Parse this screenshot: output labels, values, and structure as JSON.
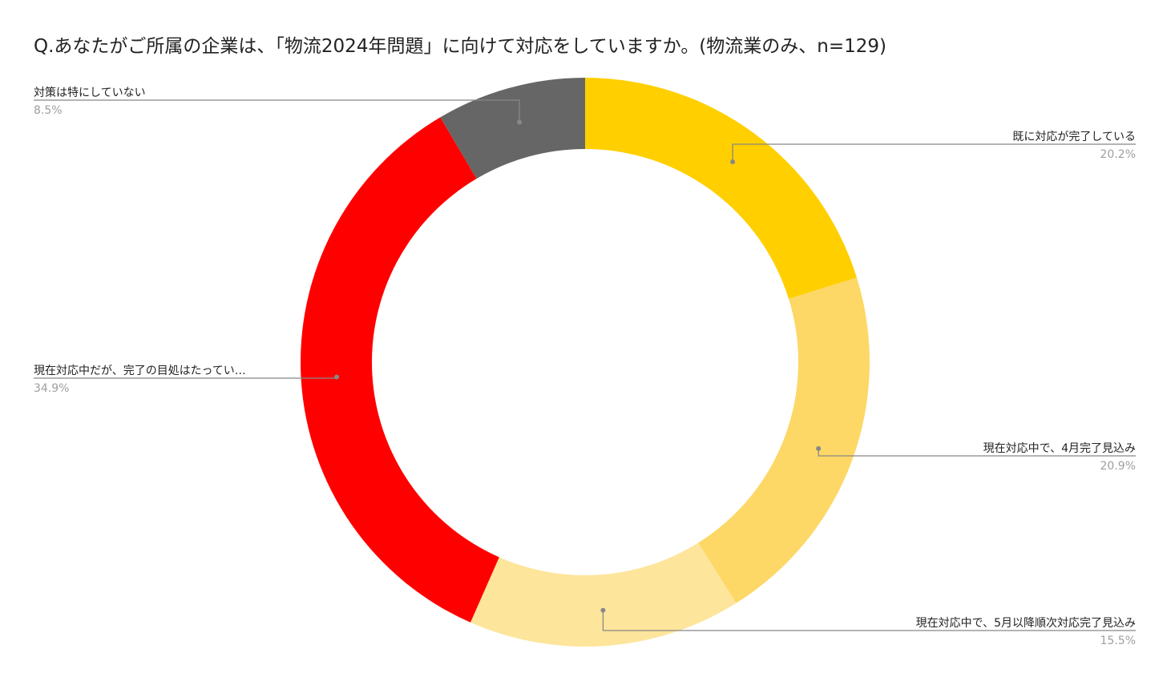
{
  "chart_data": {
    "type": "pie",
    "donut": true,
    "title": "Q.あなたがご所属の企業は、「物流2024年問題」に向けて対応をしていますか。(物流業のみ、n=129)",
    "slices": [
      {
        "label": "既に対応が完了している",
        "value": 20.2,
        "value_label": "20.2%",
        "color": "#FFCF00"
      },
      {
        "label": "現在対応中で、4月完了見込み",
        "value": 20.9,
        "value_label": "20.9%",
        "color": "#FDD866"
      },
      {
        "label": "現在対応中で、5月以降順次対応完了見込み",
        "value": 15.5,
        "value_label": "15.5%",
        "color": "#FDE59B"
      },
      {
        "label": "現在対応中だが、完了の目処はたってい…",
        "value": 34.9,
        "value_label": "34.9%",
        "color": "#FF0000"
      },
      {
        "label": "対策は特にしていない",
        "value": 8.5,
        "value_label": "8.5%",
        "color": "#666666"
      }
    ],
    "leader_color": "#888888",
    "start_angle_deg": 0,
    "direction": "clockwise"
  }
}
